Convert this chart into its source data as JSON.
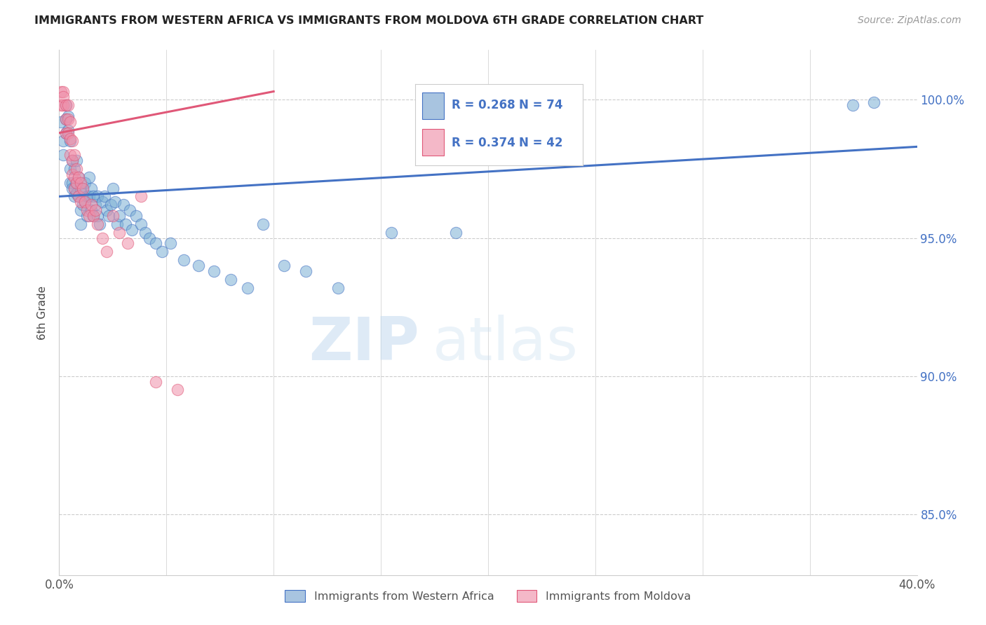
{
  "title": "IMMIGRANTS FROM WESTERN AFRICA VS IMMIGRANTS FROM MOLDOVA 6TH GRADE CORRELATION CHART",
  "source": "Source: ZipAtlas.com",
  "ylabel": "6th Grade",
  "x_min": 0.0,
  "x_max": 0.4,
  "y_min": 0.828,
  "y_max": 1.018,
  "y_ticks": [
    0.85,
    0.9,
    0.95,
    1.0
  ],
  "y_tick_labels": [
    "85.0%",
    "90.0%",
    "95.0%",
    "100.0%"
  ],
  "legend_items": [
    "Immigrants from Western Africa",
    "Immigrants from Moldova"
  ],
  "legend_colors": [
    "#a8c4e0",
    "#f4b8c8"
  ],
  "r_color": "#4472c4",
  "line_blue": "#4472c4",
  "line_pink": "#e05878",
  "blue_color": "#7bafd4",
  "pink_color": "#f090aa",
  "watermark_zip": "ZIP",
  "watermark_atlas": "atlas",
  "blue_r": "0.268",
  "blue_n": "74",
  "pink_r": "0.374",
  "pink_n": "42",
  "blue_line_x0": 0.0,
  "blue_line_y0": 0.965,
  "blue_line_x1": 0.4,
  "blue_line_y1": 0.983,
  "pink_line_x0": 0.0,
  "pink_line_y0": 0.988,
  "pink_line_x1": 0.1,
  "pink_line_y1": 1.003,
  "blue_scatter_x": [
    0.001,
    0.002,
    0.002,
    0.003,
    0.003,
    0.003,
    0.004,
    0.004,
    0.005,
    0.005,
    0.005,
    0.006,
    0.006,
    0.006,
    0.007,
    0.007,
    0.007,
    0.008,
    0.008,
    0.008,
    0.009,
    0.009,
    0.01,
    0.01,
    0.01,
    0.011,
    0.011,
    0.012,
    0.012,
    0.013,
    0.013,
    0.014,
    0.014,
    0.015,
    0.015,
    0.016,
    0.016,
    0.017,
    0.018,
    0.018,
    0.019,
    0.02,
    0.021,
    0.022,
    0.023,
    0.024,
    0.025,
    0.026,
    0.027,
    0.028,
    0.03,
    0.031,
    0.033,
    0.034,
    0.036,
    0.038,
    0.04,
    0.042,
    0.045,
    0.048,
    0.052,
    0.058,
    0.065,
    0.072,
    0.08,
    0.088,
    0.095,
    0.105,
    0.115,
    0.13,
    0.155,
    0.185,
    0.37,
    0.38
  ],
  "blue_scatter_y": [
    0.992,
    0.985,
    0.98,
    0.998,
    0.993,
    0.988,
    0.994,
    0.989,
    0.985,
    0.975,
    0.97,
    0.978,
    0.97,
    0.968,
    0.975,
    0.968,
    0.965,
    0.978,
    0.97,
    0.966,
    0.972,
    0.965,
    0.968,
    0.96,
    0.955,
    0.968,
    0.962,
    0.97,
    0.963,
    0.965,
    0.958,
    0.972,
    0.965,
    0.968,
    0.96,
    0.965,
    0.958,
    0.962,
    0.965,
    0.958,
    0.955,
    0.963,
    0.965,
    0.96,
    0.958,
    0.962,
    0.968,
    0.963,
    0.955,
    0.958,
    0.962,
    0.955,
    0.96,
    0.953,
    0.958,
    0.955,
    0.952,
    0.95,
    0.948,
    0.945,
    0.948,
    0.942,
    0.94,
    0.938,
    0.935,
    0.932,
    0.955,
    0.94,
    0.938,
    0.932,
    0.952,
    0.952,
    0.998,
    0.999
  ],
  "pink_scatter_x": [
    0.001,
    0.001,
    0.002,
    0.002,
    0.002,
    0.003,
    0.003,
    0.003,
    0.004,
    0.004,
    0.004,
    0.005,
    0.005,
    0.005,
    0.006,
    0.006,
    0.006,
    0.007,
    0.007,
    0.007,
    0.008,
    0.008,
    0.009,
    0.009,
    0.01,
    0.01,
    0.011,
    0.012,
    0.013,
    0.014,
    0.015,
    0.016,
    0.017,
    0.018,
    0.02,
    0.022,
    0.025,
    0.028,
    0.032,
    0.038,
    0.045,
    0.055
  ],
  "pink_scatter_y": [
    1.003,
    0.998,
    1.003,
    0.998,
    1.001,
    0.998,
    0.993,
    0.988,
    0.998,
    0.993,
    0.988,
    0.992,
    0.986,
    0.98,
    0.985,
    0.978,
    0.973,
    0.98,
    0.972,
    0.968,
    0.975,
    0.97,
    0.972,
    0.965,
    0.97,
    0.963,
    0.968,
    0.963,
    0.96,
    0.958,
    0.962,
    0.958,
    0.96,
    0.955,
    0.95,
    0.945,
    0.958,
    0.952,
    0.948,
    0.965,
    0.898,
    0.895
  ]
}
